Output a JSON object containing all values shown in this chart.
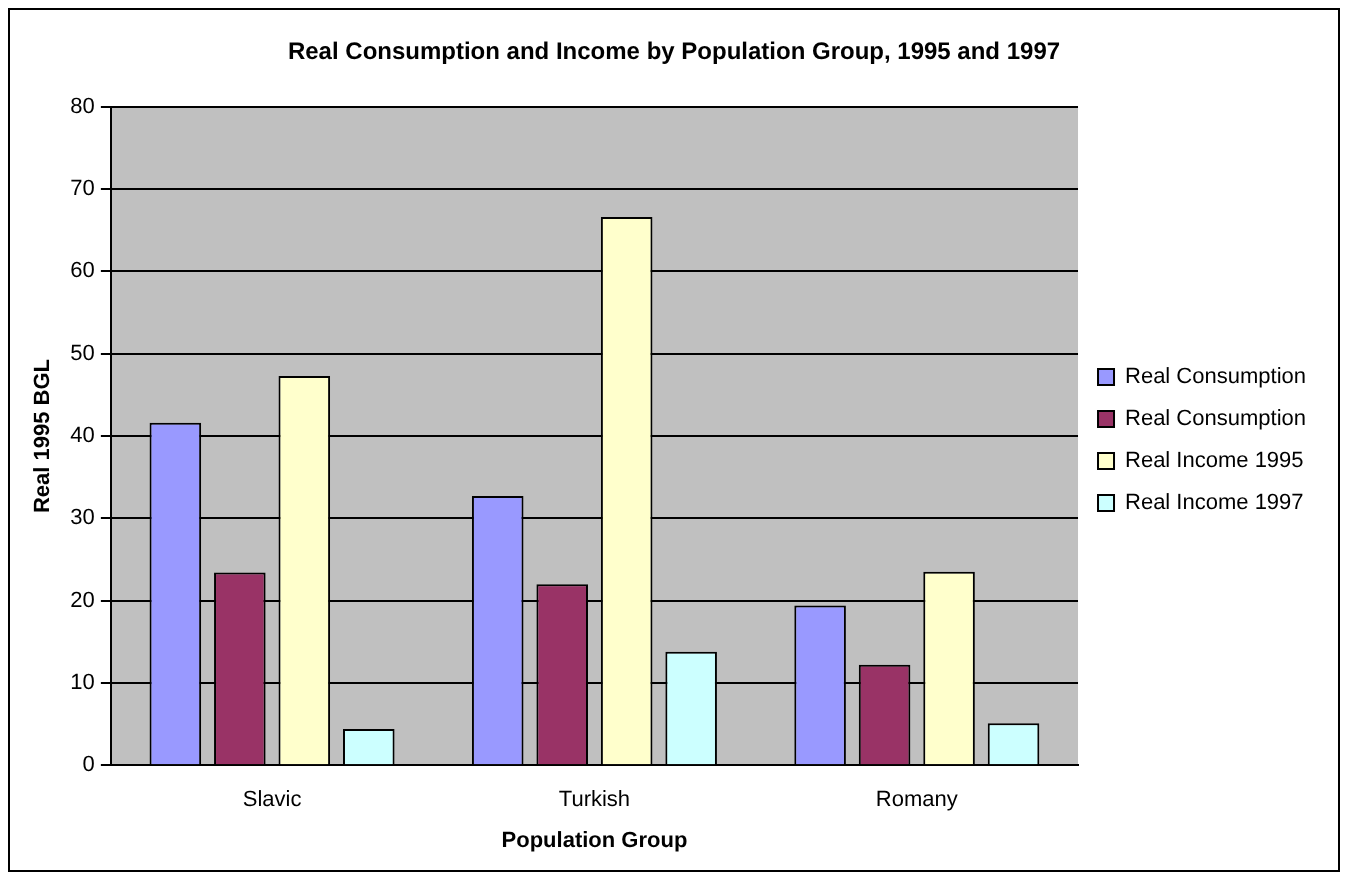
{
  "chart_data": {
    "type": "bar",
    "title": "Real Consumption and Income by Population Group, 1995 and 1997",
    "xlabel": "Population Group",
    "ylabel": "Real 1995 BGL",
    "categories": [
      "Slavic",
      "Turkish",
      "Romany"
    ],
    "series": [
      {
        "name": "Real Consumption",
        "color": "#9999ff",
        "values": [
          41.6,
          32.7,
          19.4
        ]
      },
      {
        "name": "Real Consumption",
        "color": "#993366",
        "values": [
          23.4,
          22.0,
          12.2
        ]
      },
      {
        "name": "Real Income 1995",
        "color": "#ffffcc",
        "values": [
          47.3,
          66.6,
          23.5
        ]
      },
      {
        "name": "Real Income 1997",
        "color": "#ccffff",
        "values": [
          4.4,
          13.8,
          5.1
        ]
      }
    ],
    "ylim": [
      0,
      80
    ],
    "yticks": [
      0,
      10,
      20,
      30,
      40,
      50,
      60,
      70,
      80
    ],
    "grid": "y",
    "legend": "right"
  }
}
